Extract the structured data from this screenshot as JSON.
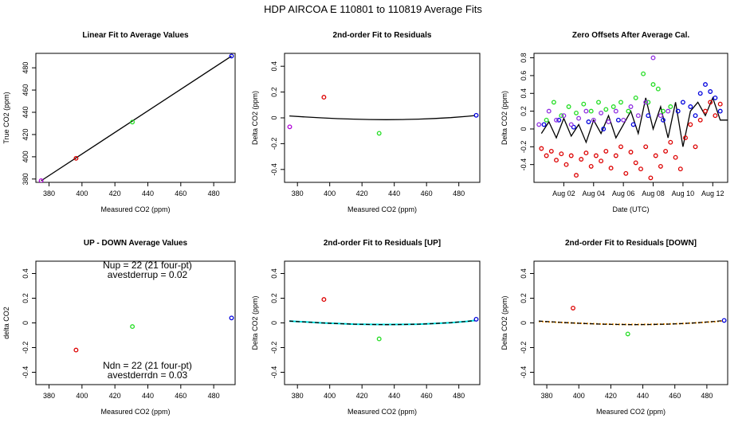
{
  "figure": {
    "title": "HDP    AIRCOA E   110801 to 110819   Average Fits"
  },
  "colors": {
    "red": "#dd0000",
    "green": "#22dd22",
    "blue": "#0000dd",
    "magenta": "#b000d8",
    "purple": "#9030e0",
    "black": "#000000",
    "cyan": "#00e0e0",
    "orange": "#ff9900"
  },
  "chart_data": [
    {
      "id": "p1",
      "type": "scatter",
      "title": "Linear Fit to Average Values",
      "xlabel": "Measured CO2 (ppm)",
      "ylabel": "True CO2 (ppm)",
      "xlim": [
        372,
        493
      ],
      "ylim": [
        377,
        493
      ],
      "xticks": [
        380,
        400,
        420,
        440,
        460,
        480
      ],
      "yticks": [
        380,
        400,
        420,
        440,
        460,
        480
      ],
      "series": [
        {
          "kind": "points",
          "color": "magenta",
          "x": [
            375.2
          ],
          "y": [
            378.5
          ]
        },
        {
          "kind": "points",
          "color": "red",
          "x": [
            396.4
          ],
          "y": [
            398.6
          ]
        },
        {
          "kind": "points",
          "color": "green",
          "x": [
            430.6
          ],
          "y": [
            431.2
          ]
        },
        {
          "kind": "points",
          "color": "blue",
          "x": [
            490.8
          ],
          "y": [
            490.6
          ]
        },
        {
          "kind": "line",
          "color": "black",
          "x": [
            375.2,
            490.8
          ],
          "y": [
            378.4,
            490.6
          ]
        }
      ]
    },
    {
      "id": "p2",
      "type": "scatter",
      "title": "2nd-order Fit to Residuals",
      "xlabel": "Measured CO2 (ppm)",
      "ylabel": "Delta CO2 (ppm)",
      "xlim": [
        372,
        493
      ],
      "ylim": [
        -0.5,
        0.5
      ],
      "xticks": [
        380,
        400,
        420,
        440,
        460,
        480
      ],
      "yticks": [
        -0.4,
        -0.2,
        0.0,
        0.2,
        0.4
      ],
      "series": [
        {
          "kind": "points",
          "color": "magenta",
          "x": [
            375.2
          ],
          "y": [
            -0.07
          ]
        },
        {
          "kind": "points",
          "color": "red",
          "x": [
            396.4
          ],
          "y": [
            0.16
          ]
        },
        {
          "kind": "points",
          "color": "green",
          "x": [
            430.6
          ],
          "y": [
            -0.12
          ]
        },
        {
          "kind": "points",
          "color": "blue",
          "x": [
            490.8
          ],
          "y": [
            0.02
          ]
        },
        {
          "kind": "line",
          "color": "black",
          "x": [
            375,
            385,
            395,
            405,
            415,
            425,
            435,
            445,
            455,
            465,
            475,
            485,
            490
          ],
          "y": [
            0.015,
            0.007,
            0.0,
            -0.006,
            -0.01,
            -0.013,
            -0.014,
            -0.013,
            -0.01,
            -0.005,
            0.002,
            0.012,
            0.018
          ]
        }
      ]
    },
    {
      "id": "p3",
      "type": "scatter",
      "title": "Zero Offsets After Average Cal.",
      "xlabel": "Date (UTC)",
      "ylabel": "Delta CO2 (ppm)",
      "xlim": [
        "2011-08-00",
        "2011-08-13"
      ],
      "ylim": [
        -0.6,
        0.85
      ],
      "xticks": [
        "2011-08-02",
        "2011-08-04",
        "2011-08-06",
        "2011-08-08",
        "2011-08-10",
        "2011-08-12"
      ],
      "xticklabels": [
        "Aug 02",
        "Aug 04",
        "Aug 06",
        "Aug 08",
        "Aug 10",
        "Aug 12"
      ],
      "yticks": [
        -0.4,
        -0.2,
        0.0,
        0.2,
        0.4,
        0.6,
        0.8
      ],
      "series": [
        {
          "kind": "points",
          "color": "red",
          "x": [
            "2011-08-00T12:00",
            "2011-08-00T20:00",
            "2011-08-01T04:00",
            "2011-08-01T12:00",
            "2011-08-01T20:00",
            "2011-08-02T04:00",
            "2011-08-02T12:00",
            "2011-08-02T20:00",
            "2011-08-03T04:00",
            "2011-08-03T12:00",
            "2011-08-03T20:00",
            "2011-08-04T04:00",
            "2011-08-04T12:00",
            "2011-08-04T20:00",
            "2011-08-05T04:00",
            "2011-08-05T12:00",
            "2011-08-05T20:00",
            "2011-08-06T04:00",
            "2011-08-06T12:00",
            "2011-08-06T20:00",
            "2011-08-07T04:00",
            "2011-08-07T12:00",
            "2011-08-07T20:00",
            "2011-08-08T04:00",
            "2011-08-08T12:00",
            "2011-08-08T20:00",
            "2011-08-09T04:00",
            "2011-08-09T12:00",
            "2011-08-09T20:00",
            "2011-08-10T04:00",
            "2011-08-10T12:00",
            "2011-08-10T20:00",
            "2011-08-11T04:00",
            "2011-08-11T12:00",
            "2011-08-11T20:00",
            "2011-08-12T04:00",
            "2011-08-12T12:00"
          ],
          "y": [
            -0.22,
            -0.3,
            -0.25,
            -0.35,
            -0.28,
            -0.4,
            -0.3,
            -0.52,
            -0.34,
            -0.27,
            -0.42,
            -0.3,
            -0.36,
            -0.25,
            -0.44,
            -0.3,
            -0.2,
            -0.5,
            -0.26,
            -0.38,
            -0.45,
            -0.2,
            -0.55,
            -0.3,
            -0.42,
            -0.25,
            -0.15,
            -0.32,
            -0.45,
            -0.1,
            0.05,
            -0.2,
            0.1,
            0.2,
            0.3,
            0.15,
            0.28
          ]
        },
        {
          "kind": "points",
          "color": "green",
          "x": [
            "2011-08-00T20:00",
            "2011-08-01T08:00",
            "2011-08-01T20:00",
            "2011-08-02T08:00",
            "2011-08-02T20:00",
            "2011-08-03T08:00",
            "2011-08-03T20:00",
            "2011-08-04T08:00",
            "2011-08-04T20:00",
            "2011-08-05T08:00",
            "2011-08-05T20:00",
            "2011-08-06T08:00",
            "2011-08-06T20:00",
            "2011-08-07T08:00",
            "2011-08-07T16:00",
            "2011-08-08T00:00",
            "2011-08-08T08:00",
            "2011-08-08T16:00",
            "2011-08-09T04:00"
          ],
          "y": [
            0.1,
            0.3,
            0.15,
            0.25,
            0.18,
            0.28,
            0.2,
            0.3,
            0.22,
            0.25,
            0.3,
            0.2,
            0.35,
            0.62,
            0.3,
            0.5,
            0.45,
            0.2,
            0.25
          ]
        },
        {
          "kind": "points",
          "color": "blue",
          "x": [
            "2011-08-00T16:00",
            "2011-08-01T16:00",
            "2011-08-02T16:00",
            "2011-08-03T16:00",
            "2011-08-04T16:00",
            "2011-08-05T16:00",
            "2011-08-06T16:00",
            "2011-08-07T16:00",
            "2011-08-08T16:00",
            "2011-08-09T16:00",
            "2011-08-10T00:00",
            "2011-08-10T12:00",
            "2011-08-10T20:00",
            "2011-08-11T04:00",
            "2011-08-11T12:00",
            "2011-08-11T20:00",
            "2011-08-12T04:00",
            "2011-08-12T12:00"
          ],
          "y": [
            0.05,
            0.1,
            0.02,
            0.08,
            0.0,
            0.1,
            0.05,
            0.15,
            0.1,
            0.2,
            0.3,
            0.25,
            0.15,
            0.4,
            0.5,
            0.42,
            0.35,
            0.2
          ]
        },
        {
          "kind": "points",
          "color": "purple",
          "x": [
            "2011-08-00T08:00",
            "2011-08-01T00:00",
            "2011-08-01T12:00",
            "2011-08-02T00:00",
            "2011-08-02T12:00",
            "2011-08-03T00:00",
            "2011-08-03T12:00",
            "2011-08-04T00:00",
            "2011-08-04T12:00",
            "2011-08-05T00:00",
            "2011-08-05T12:00",
            "2011-08-06T00:00",
            "2011-08-06T12:00",
            "2011-08-07T00:00",
            "2011-08-07T12:00",
            "2011-08-08T00:00",
            "2011-08-08T12:00",
            "2011-08-09T00:00"
          ],
          "y": [
            0.05,
            0.2,
            0.1,
            0.15,
            0.05,
            0.12,
            0.2,
            0.1,
            0.18,
            0.08,
            0.2,
            0.1,
            0.25,
            0.15,
            0.3,
            0.8,
            0.15,
            0.2
          ]
        },
        {
          "kind": "line",
          "color": "black",
          "x": [
            "2011-08-00T12:00",
            "2011-08-01T00:00",
            "2011-08-01T12:00",
            "2011-08-02T00:00",
            "2011-08-02T12:00",
            "2011-08-03T00:00",
            "2011-08-03T12:00",
            "2011-08-04T00:00",
            "2011-08-04T12:00",
            "2011-08-05T00:00",
            "2011-08-05T12:00",
            "2011-08-06T00:00",
            "2011-08-06T12:00",
            "2011-08-07T00:00",
            "2011-08-07T12:00",
            "2011-08-08T00:00",
            "2011-08-08T12:00",
            "2011-08-09T00:00",
            "2011-08-09T12:00",
            "2011-08-10T00:00",
            "2011-08-10T12:00",
            "2011-08-11T00:00",
            "2011-08-11T12:00",
            "2011-08-12T00:00",
            "2011-08-12T12:00",
            "2011-08-13T00:00"
          ],
          "y": [
            -0.05,
            0.08,
            -0.1,
            0.12,
            -0.08,
            0.05,
            -0.15,
            0.1,
            -0.05,
            0.15,
            -0.1,
            0.05,
            0.2,
            -0.05,
            0.35,
            0.0,
            0.25,
            -0.1,
            0.3,
            -0.2,
            0.2,
            0.3,
            0.15,
            0.35,
            0.1,
            0.1
          ]
        }
      ]
    },
    {
      "id": "p4",
      "type": "scatter",
      "title": "UP - DOWN Average Values",
      "xlabel": "Measured CO2 (ppm)",
      "ylabel": "delta CO2",
      "xlim": [
        372,
        493
      ],
      "ylim": [
        -0.5,
        0.5
      ],
      "xticks": [
        380,
        400,
        420,
        440,
        460,
        480
      ],
      "yticks": [
        -0.4,
        -0.2,
        0.0,
        0.2,
        0.4
      ],
      "annotations": [
        "Nup = 22 (21 four-pt)",
        "avestderrup =  0.02",
        "Ndn = 22 (21 four-pt)",
        "avestderrdn =  0.03"
      ],
      "series": [
        {
          "kind": "points",
          "color": "red",
          "x": [
            396.4
          ],
          "y": [
            -0.22
          ]
        },
        {
          "kind": "points",
          "color": "green",
          "x": [
            430.6
          ],
          "y": [
            -0.03
          ]
        },
        {
          "kind": "points",
          "color": "blue",
          "x": [
            490.8
          ],
          "y": [
            0.04
          ]
        }
      ]
    },
    {
      "id": "p5",
      "type": "scatter",
      "title": "2nd-order Fit to Residuals [UP]",
      "xlabel": "Measured CO2 (ppm)",
      "ylabel": "Delta CO2 (ppm)",
      "xlim": [
        372,
        493
      ],
      "ylim": [
        -0.5,
        0.5
      ],
      "xticks": [
        380,
        400,
        420,
        440,
        460,
        480
      ],
      "yticks": [
        -0.4,
        -0.2,
        0.0,
        0.2,
        0.4
      ],
      "series": [
        {
          "kind": "points",
          "color": "red",
          "x": [
            396.4
          ],
          "y": [
            0.19
          ]
        },
        {
          "kind": "points",
          "color": "green",
          "x": [
            430.6
          ],
          "y": [
            -0.13
          ]
        },
        {
          "kind": "points",
          "color": "blue",
          "x": [
            490.8
          ],
          "y": [
            0.03
          ]
        },
        {
          "kind": "line",
          "color": "cyan",
          "x": [
            375,
            385,
            395,
            405,
            415,
            425,
            435,
            445,
            455,
            465,
            475,
            485,
            490
          ],
          "y": [
            0.015,
            0.008,
            0.0,
            -0.005,
            -0.01,
            -0.012,
            -0.013,
            -0.012,
            -0.01,
            -0.005,
            0.002,
            0.012,
            0.02
          ]
        },
        {
          "kind": "line",
          "color": "black",
          "dash": true,
          "x": [
            375,
            385,
            395,
            405,
            415,
            425,
            435,
            445,
            455,
            465,
            475,
            485,
            490
          ],
          "y": [
            0.015,
            0.007,
            0.0,
            -0.006,
            -0.01,
            -0.013,
            -0.014,
            -0.013,
            -0.01,
            -0.005,
            0.002,
            0.012,
            0.018
          ]
        }
      ]
    },
    {
      "id": "p6",
      "type": "scatter",
      "title": "2nd-order Fit to Residuals [DOWN]",
      "xlabel": "Measured CO2 (ppm)",
      "ylabel": "Delta CO2 (ppm)",
      "xlim": [
        372,
        493
      ],
      "ylim": [
        -0.5,
        0.5
      ],
      "xticks": [
        380,
        400,
        420,
        440,
        460,
        480
      ],
      "yticks": [
        -0.4,
        -0.2,
        0.0,
        0.2,
        0.4
      ],
      "series": [
        {
          "kind": "points",
          "color": "red",
          "x": [
            396.4
          ],
          "y": [
            0.12
          ]
        },
        {
          "kind": "points",
          "color": "green",
          "x": [
            430.6
          ],
          "y": [
            -0.09
          ]
        },
        {
          "kind": "points",
          "color": "blue",
          "x": [
            490.8
          ],
          "y": [
            0.02
          ]
        },
        {
          "kind": "line",
          "color": "orange",
          "dotted": true,
          "x": [
            375,
            385,
            395,
            405,
            415,
            425,
            435,
            445,
            455,
            465,
            475,
            485,
            490
          ],
          "y": [
            0.012,
            0.006,
            0.0,
            -0.005,
            -0.009,
            -0.012,
            -0.013,
            -0.012,
            -0.009,
            -0.005,
            0.002,
            0.01,
            0.016
          ]
        },
        {
          "kind": "line",
          "color": "black",
          "dash": true,
          "x": [
            375,
            385,
            395,
            405,
            415,
            425,
            435,
            445,
            455,
            465,
            475,
            485,
            490
          ],
          "y": [
            0.015,
            0.007,
            0.0,
            -0.006,
            -0.01,
            -0.013,
            -0.014,
            -0.013,
            -0.01,
            -0.005,
            0.002,
            0.012,
            0.018
          ]
        }
      ]
    }
  ]
}
